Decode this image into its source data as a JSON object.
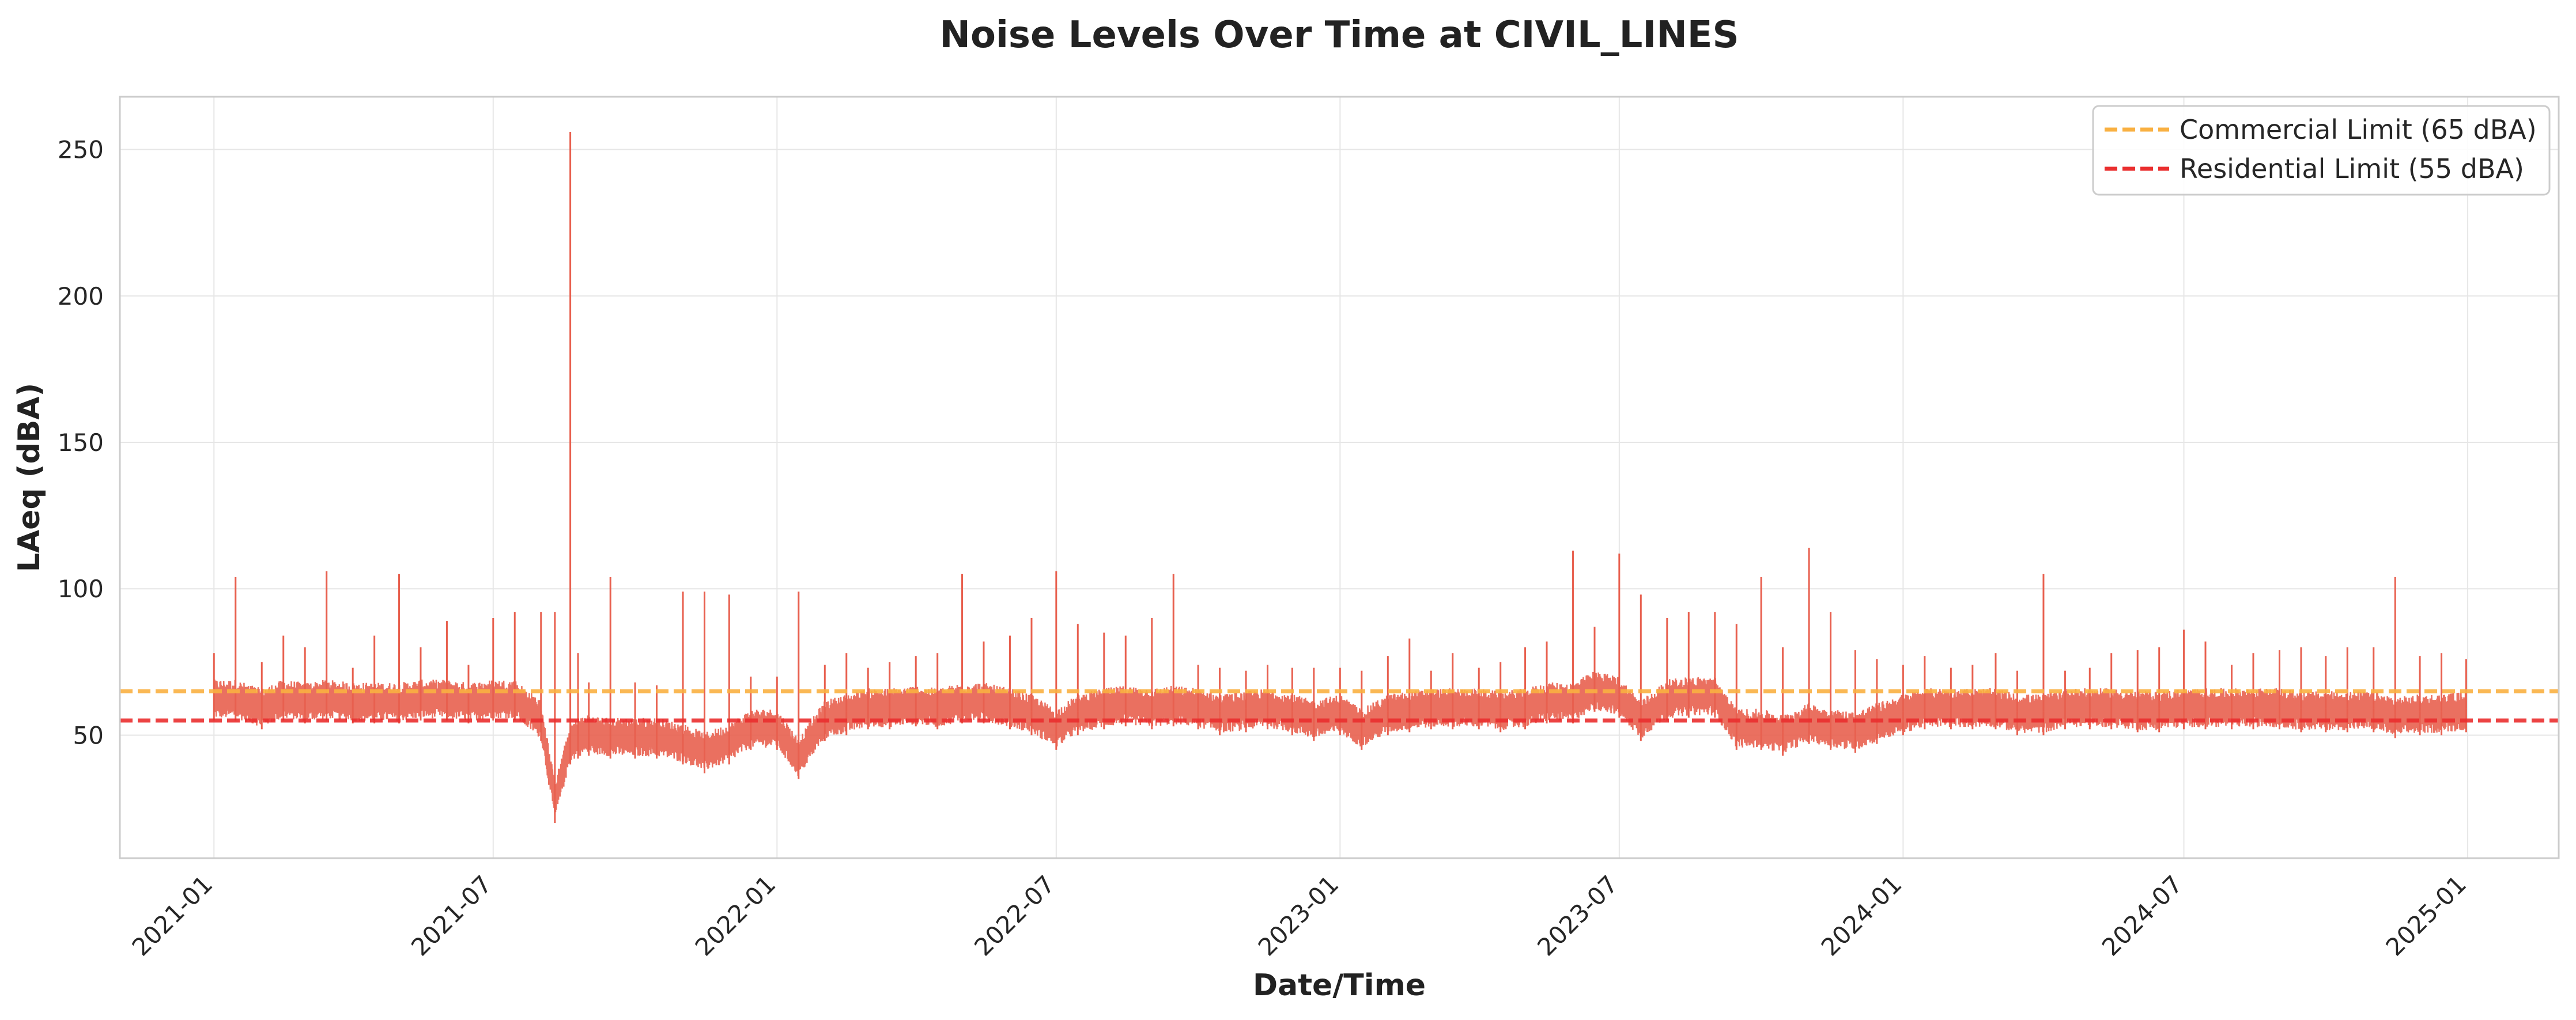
{
  "chart_data": {
    "type": "line",
    "title": "Noise Levels Over Time at CIVIL_LINES",
    "xlabel": "Date/Time",
    "ylabel": "LAeq (dBA)",
    "x_range": [
      "2020-11-01",
      "2025-03-01"
    ],
    "x_ticks": [
      "2021-01",
      "2021-07",
      "2022-01",
      "2022-07",
      "2023-01",
      "2023-07",
      "2024-01",
      "2024-07",
      "2025-01"
    ],
    "ylim": [
      8,
      268
    ],
    "y_ticks": [
      50,
      100,
      150,
      200,
      250
    ],
    "grid": true,
    "legend_position": "top-right",
    "series": [
      {
        "color": "#e8604f",
        "x": [
          "2021-01-01",
          "2021-01-15",
          "2021-02-01",
          "2021-02-15",
          "2021-03-01",
          "2021-03-15",
          "2021-04-01",
          "2021-04-15",
          "2021-05-01",
          "2021-05-15",
          "2021-06-01",
          "2021-06-15",
          "2021-07-01",
          "2021-07-15",
          "2021-08-01",
          "2021-08-10",
          "2021-08-20",
          "2021-08-25",
          "2021-09-01",
          "2021-09-15",
          "2021-10-01",
          "2021-10-15",
          "2021-11-01",
          "2021-11-15",
          "2021-12-01",
          "2021-12-15",
          "2022-01-01",
          "2022-01-15",
          "2022-02-01",
          "2022-02-15",
          "2022-03-01",
          "2022-03-15",
          "2022-04-01",
          "2022-04-15",
          "2022-05-01",
          "2022-05-15",
          "2022-06-01",
          "2022-06-15",
          "2022-07-01",
          "2022-07-15",
          "2022-08-01",
          "2022-08-15",
          "2022-09-01",
          "2022-09-15",
          "2022-10-01",
          "2022-10-15",
          "2022-11-01",
          "2022-11-15",
          "2022-12-01",
          "2022-12-15",
          "2023-01-01",
          "2023-01-15",
          "2023-02-01",
          "2023-02-15",
          "2023-03-01",
          "2023-03-15",
          "2023-04-01",
          "2023-04-15",
          "2023-05-01",
          "2023-05-15",
          "2023-06-01",
          "2023-06-15",
          "2023-07-01",
          "2023-07-15",
          "2023-08-01",
          "2023-08-15",
          "2023-09-01",
          "2023-09-15",
          "2023-10-01",
          "2023-10-15",
          "2023-11-01",
          "2023-11-15",
          "2023-12-01",
          "2023-12-15",
          "2024-01-01",
          "2024-01-15",
          "2024-02-01",
          "2024-02-15",
          "2024-03-01",
          "2024-03-15",
          "2024-04-01",
          "2024-04-15",
          "2024-05-01",
          "2024-05-15",
          "2024-06-01",
          "2024-06-15",
          "2024-07-01",
          "2024-07-15",
          "2024-08-01",
          "2024-08-15",
          "2024-09-01",
          "2024-09-15",
          "2024-10-01",
          "2024-10-15",
          "2024-11-01",
          "2024-11-15",
          "2024-12-01",
          "2024-12-15",
          "2024-12-31"
        ],
        "max": [
          78,
          104,
          75,
          84,
          80,
          106,
          73,
          84,
          105,
          80,
          89,
          74,
          90,
          92,
          92,
          92,
          256,
          78,
          68,
          104,
          68,
          67,
          99,
          99,
          98,
          70,
          70,
          99,
          74,
          78,
          73,
          75,
          77,
          78,
          105,
          82,
          84,
          90,
          106,
          88,
          85,
          84,
          90,
          105,
          74,
          73,
          72,
          74,
          73,
          73,
          73,
          72,
          77,
          83,
          72,
          78,
          73,
          75,
          80,
          82,
          113,
          87,
          112,
          98,
          90,
          92,
          92,
          88,
          104,
          80,
          114,
          92,
          79,
          76,
          74,
          77,
          73,
          74,
          78,
          72,
          105,
          72,
          73,
          78,
          79,
          80,
          86,
          82,
          74,
          78,
          79,
          80,
          77,
          80,
          80,
          104,
          77,
          78,
          76
        ],
        "min": [
          55,
          55,
          52,
          55,
          54,
          55,
          54,
          54,
          54,
          55,
          55,
          54,
          55,
          55,
          48,
          20,
          40,
          42,
          43,
          42,
          42,
          42,
          40,
          37,
          40,
          45,
          45,
          35,
          48,
          50,
          52,
          52,
          53,
          52,
          54,
          54,
          52,
          50,
          45,
          50,
          52,
          53,
          52,
          53,
          52,
          50,
          51,
          52,
          50,
          48,
          50,
          45,
          50,
          51,
          52,
          52,
          52,
          51,
          52,
          54,
          54,
          58,
          56,
          48,
          55,
          56,
          56,
          45,
          45,
          43,
          47,
          45,
          44,
          47,
          50,
          52,
          52,
          52,
          52,
          50,
          50,
          52,
          52,
          52,
          51,
          51,
          52,
          52,
          52,
          52,
          52,
          51,
          51,
          51,
          51,
          49,
          50,
          50,
          51
        ]
      }
    ],
    "reference_lines": [
      {
        "label": "Commercial Limit (65 dBA)",
        "y": 65,
        "color": "#f9b041",
        "style": "dashed"
      },
      {
        "label": "Residential Limit (55 dBA)",
        "y": 55,
        "color": "#ea2f2f",
        "style": "dashed"
      }
    ]
  }
}
